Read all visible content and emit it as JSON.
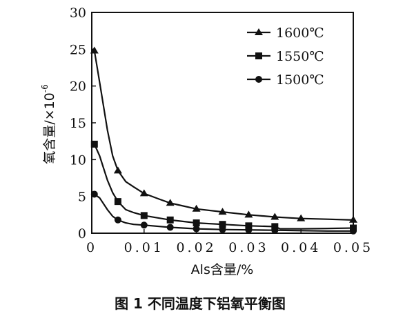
{
  "caption": "图 1  不同温度下铝氧平衡图",
  "chart_data": {
    "type": "line",
    "xlabel": "Als含量/%",
    "ylabel": "氧含量/×10",
    "ylabel_exp": "-6",
    "xlim": [
      0,
      0.05
    ],
    "ylim": [
      0,
      30
    ],
    "xticks": [
      0,
      0.01,
      0.02,
      0.03,
      0.04,
      0.05
    ],
    "xtick_labels": [
      "0",
      "0.01",
      "0.02",
      "0.03",
      "0.04",
      "0.05"
    ],
    "yticks": [
      0,
      5,
      10,
      15,
      20,
      25,
      30
    ],
    "ytick_labels": [
      "0",
      "5",
      "10",
      "15",
      "20",
      "25",
      "30"
    ],
    "legend_position": "top-right",
    "series": [
      {
        "name": "1600℃",
        "marker": "triangle",
        "curve": [
          [
            0.0005,
            24.8
          ],
          [
            0.0015,
            20.5
          ],
          [
            0.003,
            14.0
          ],
          [
            0.004,
            10.5
          ],
          [
            0.005,
            8.5
          ],
          [
            0.0065,
            7.0
          ],
          [
            0.008,
            6.3
          ],
          [
            0.01,
            5.4
          ],
          [
            0.013,
            4.6
          ],
          [
            0.015,
            4.1
          ],
          [
            0.02,
            3.3
          ],
          [
            0.025,
            2.9
          ],
          [
            0.03,
            2.5
          ],
          [
            0.035,
            2.2
          ],
          [
            0.04,
            2.0
          ],
          [
            0.045,
            1.9
          ],
          [
            0.05,
            1.8
          ]
        ],
        "markers": [
          [
            0.0005,
            24.8
          ],
          [
            0.005,
            8.5
          ],
          [
            0.01,
            5.4
          ],
          [
            0.015,
            4.1
          ],
          [
            0.02,
            3.3
          ],
          [
            0.025,
            2.9
          ],
          [
            0.03,
            2.5
          ],
          [
            0.035,
            2.2
          ],
          [
            0.04,
            2.0
          ],
          [
            0.05,
            1.8
          ]
        ]
      },
      {
        "name": "1550℃",
        "marker": "square",
        "curve": [
          [
            0.0005,
            12.1
          ],
          [
            0.0015,
            10.5
          ],
          [
            0.003,
            7.2
          ],
          [
            0.004,
            5.5
          ],
          [
            0.005,
            4.3
          ],
          [
            0.0065,
            3.2
          ],
          [
            0.008,
            2.8
          ],
          [
            0.01,
            2.4
          ],
          [
            0.015,
            1.8
          ],
          [
            0.02,
            1.4
          ],
          [
            0.025,
            1.2
          ],
          [
            0.03,
            1.0
          ],
          [
            0.035,
            0.9
          ],
          [
            0.036,
            0.6
          ],
          [
            0.04,
            0.6
          ],
          [
            0.045,
            0.65
          ],
          [
            0.05,
            0.7
          ]
        ],
        "markers": [
          [
            0.0005,
            12.1
          ],
          [
            0.005,
            4.3
          ],
          [
            0.01,
            2.4
          ],
          [
            0.015,
            1.8
          ],
          [
            0.02,
            1.4
          ],
          [
            0.025,
            1.2
          ],
          [
            0.03,
            1.0
          ],
          [
            0.035,
            0.9
          ],
          [
            0.05,
            0.7
          ]
        ]
      },
      {
        "name": "1500℃",
        "marker": "circle",
        "curve": [
          [
            0.0005,
            5.3
          ],
          [
            0.0015,
            4.8
          ],
          [
            0.003,
            3.2
          ],
          [
            0.004,
            2.3
          ],
          [
            0.005,
            1.8
          ],
          [
            0.0065,
            1.4
          ],
          [
            0.008,
            1.2
          ],
          [
            0.01,
            1.1
          ],
          [
            0.015,
            0.8
          ],
          [
            0.02,
            0.6
          ],
          [
            0.025,
            0.5
          ],
          [
            0.03,
            0.45
          ],
          [
            0.035,
            0.4
          ],
          [
            0.04,
            0.35
          ],
          [
            0.045,
            0.3
          ],
          [
            0.05,
            0.3
          ]
        ],
        "markers": [
          [
            0.0005,
            5.3
          ],
          [
            0.005,
            1.8
          ],
          [
            0.01,
            1.1
          ],
          [
            0.015,
            0.8
          ],
          [
            0.02,
            0.6
          ],
          [
            0.025,
            0.5
          ],
          [
            0.03,
            0.45
          ],
          [
            0.035,
            0.4
          ],
          [
            0.05,
            0.3
          ]
        ]
      }
    ]
  }
}
